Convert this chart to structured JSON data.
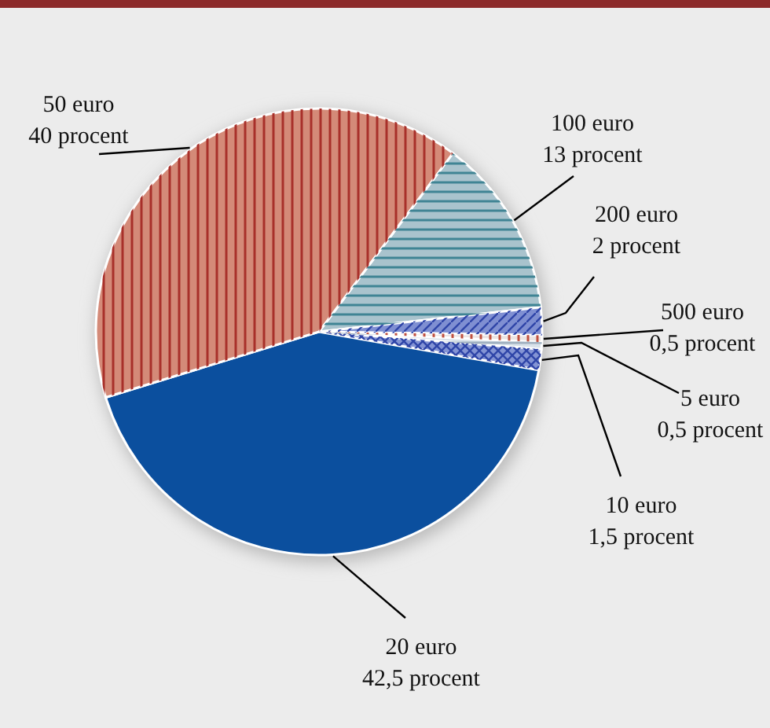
{
  "chart_data": {
    "type": "pie",
    "categories": [
      "100 euro",
      "200 euro",
      "500 euro",
      "5 euro",
      "10 euro",
      "20 euro",
      "50 euro"
    ],
    "values": [
      13,
      2,
      0.5,
      0.5,
      1.5,
      42.5,
      40
    ],
    "value_labels": [
      "13 procent",
      "2 procent",
      "0,5 procent",
      "0,5 procent",
      "1,5 procent",
      "42,5 procent",
      "40 procent"
    ],
    "colors": [
      "#a9c3cd",
      "#7f8fd2",
      "#ece4e2",
      "#d9e2ea",
      "#8494d4",
      "#0b4f9e",
      "#d48a78"
    ]
  }
}
